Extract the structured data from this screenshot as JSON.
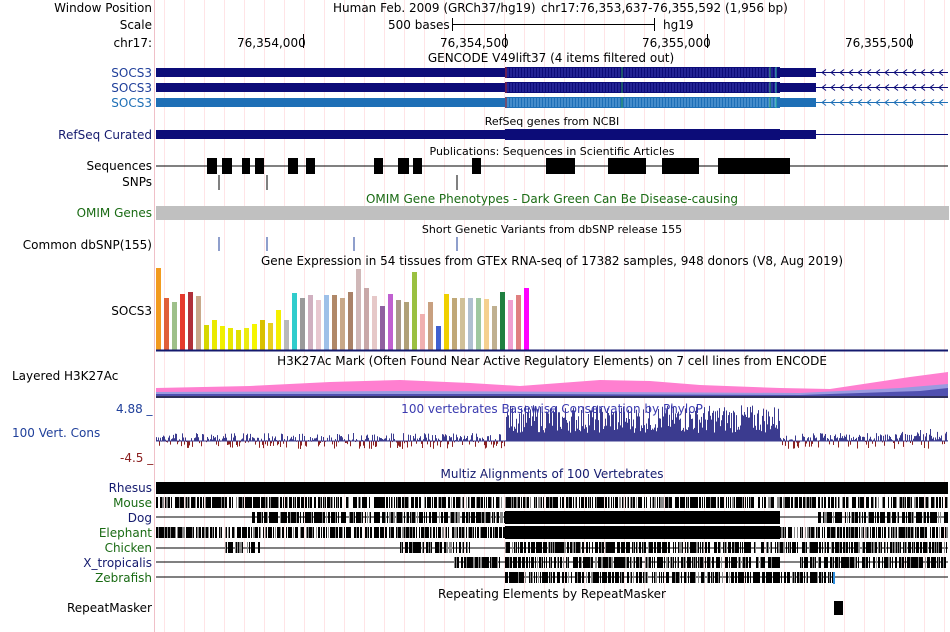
{
  "header": {
    "window_position_label": "Window Position",
    "assembly": "Human Feb. 2009 (GRCh37/hg19)",
    "position": "chr17:76,353,637-76,355,592 (1,956 bp)",
    "scale_label": "Scale",
    "scale_value": "500 bases",
    "scale_db": "hg19",
    "chrom_label": "chr17:",
    "coords": [
      "76,354,000",
      "76,354,500",
      "76,355,000",
      "76,355,500"
    ]
  },
  "tracks": {
    "gencode": {
      "title": "GENCODE V49lift37 (4 items filtered out)",
      "items": [
        "SOCS3",
        "SOCS3",
        "SOCS3"
      ],
      "colors": [
        "#0c0c78",
        "#0c0c78",
        "#1e6fb6"
      ]
    },
    "refseq": {
      "label": "RefSeq Curated",
      "title": "RefSeq genes from NCBI"
    },
    "sequences": {
      "label": "Sequences",
      "title": "Publications: Sequences in Scientific Articles"
    },
    "snps": {
      "label": "SNPs"
    },
    "omim": {
      "label": "OMIM Genes",
      "title": "OMIM Gene Phenotypes - Dark Green Can Be Disease-causing"
    },
    "dbsnp": {
      "label": "Common dbSNP(155)",
      "title": "Short Genetic Variants from dbSNP release 155"
    },
    "gtex": {
      "title": "Gene Expression in 54 tissues from GTEx RNA-seq of 17382 samples, 948 donors (V8, Aug 2019)",
      "label": "SOCS3"
    },
    "h3k27ac": {
      "label": "Layered H3K27Ac",
      "title": "H3K27Ac Mark (Often Found Near Active Regulatory Elements) on 7 cell lines from ENCODE"
    },
    "phylop": {
      "label": "100 Vert. Cons",
      "max": "4.88 _",
      "min": "-4.5 _",
      "title": "100 vertebrates Basewise Conservation by PhyloP"
    },
    "multiz": {
      "title": "Multiz Alignments of 100 Vertebrates",
      "species": [
        "Rhesus",
        "Mouse",
        "Dog",
        "Elephant",
        "Chicken",
        "X_tropicalis",
        "Zebrafish"
      ],
      "species_colors": [
        "#141a6e",
        "#1a6b14",
        "#141a6e",
        "#1a6b14",
        "#1a6b14",
        "#141a6e",
        "#1a6b14"
      ]
    },
    "repeatmasker": {
      "label": "RepeatMasker",
      "title": "Repeating Elements by RepeatMasker"
    }
  },
  "colors": {
    "gene_dark": "#0c0c78",
    "gene_light": "#1e6fb6",
    "omim_gray": "#c0c0c0",
    "phylop_pos": "#3b3b8f",
    "phylop_neg": "#8b2020",
    "h3k27_pink": "#ff7fd0"
  }
}
